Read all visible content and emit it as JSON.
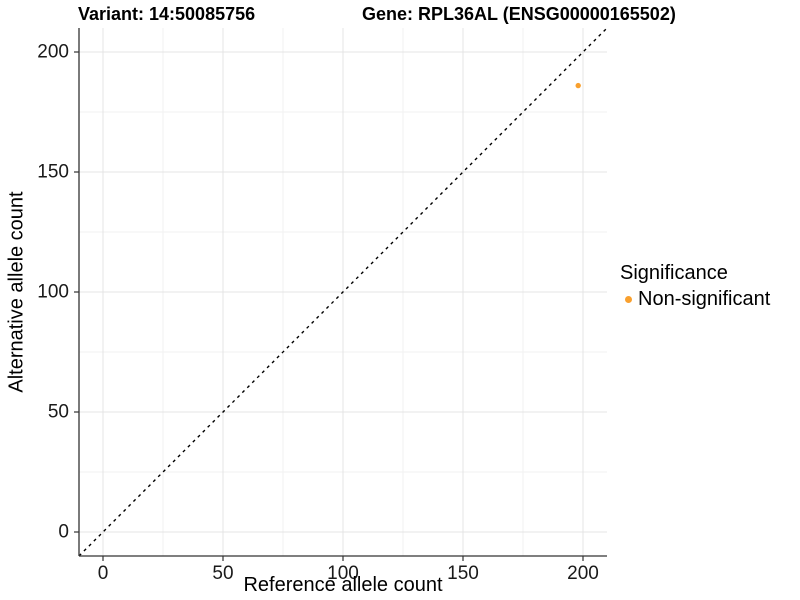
{
  "chart_data": {
    "type": "scatter",
    "title_left": "Variant: 14:50085756",
    "title_right": "Gene: RPL36AL (ENSG00000165502)",
    "xlabel": "Reference allele count",
    "ylabel": "Alternative allele count",
    "xlim": [
      -10,
      210
    ],
    "ylim": [
      -10,
      210
    ],
    "xticks": [
      0,
      50,
      100,
      150,
      200
    ],
    "yticks": [
      0,
      50,
      100,
      150,
      200
    ],
    "x_minor_ticks": [
      25,
      75,
      125,
      175
    ],
    "y_minor_ticks": [
      25,
      75,
      125,
      175
    ],
    "grid": {
      "major_color": "#E4E4E4",
      "minor_color": "#F2F2F2"
    },
    "axis_color": "#333333",
    "tick_label_color": "#1A1A1A",
    "identity_line": {
      "slope": 1,
      "intercept": 0,
      "style": "dashed",
      "color": "#000000"
    },
    "series": [
      {
        "name": "Non-significant",
        "color": "#F9A02E",
        "point_radius": 2.7,
        "points": [
          {
            "x": 198,
            "y": 186
          }
        ]
      }
    ],
    "legend": {
      "title": "Significance",
      "position": "right",
      "items": [
        {
          "label": "Non-significant",
          "color": "#F9A02E"
        }
      ]
    }
  }
}
